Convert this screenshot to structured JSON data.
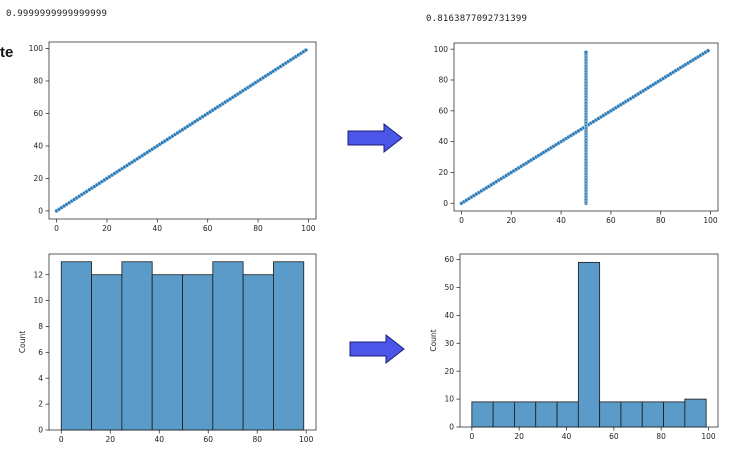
{
  "labels": {
    "corr_left": "0.9999999999999999",
    "corr_right": "0.8163877092731399",
    "side_text": "te"
  },
  "colors": {
    "point": "#2b7bb9",
    "bar": "#5a9bc9",
    "bar_edge": "#1a1a1a",
    "arrow_fill": "#4b55e8",
    "arrow_edge": "#1a1f7a"
  },
  "chart_data": [
    {
      "id": "scatter-left",
      "type": "scatter",
      "title": "",
      "xlabel": "",
      "ylabel": "",
      "xlim": [
        -3,
        103
      ],
      "ylim": [
        -5,
        104
      ],
      "xticks": [
        0,
        20,
        40,
        60,
        80,
        100
      ],
      "yticks": [
        0,
        20,
        40,
        60,
        80,
        100
      ],
      "series": [
        {
          "x_range": [
            0,
            99
          ],
          "y_equals_x": true
        }
      ],
      "grid": false
    },
    {
      "id": "scatter-right",
      "type": "scatter",
      "title": "",
      "xlabel": "",
      "ylabel": "",
      "xlim": [
        -3,
        103
      ],
      "ylim": [
        -5,
        104
      ],
      "xticks": [
        0,
        20,
        40,
        60,
        80,
        100
      ],
      "yticks": [
        0,
        20,
        40,
        60,
        80,
        100
      ],
      "series": [
        {
          "x_range": [
            0,
            99
          ],
          "y_equals_x": true
        },
        {
          "vertical_at_x": 50,
          "y_range": [
            0,
            98
          ]
        }
      ],
      "grid": false
    },
    {
      "id": "hist-left",
      "type": "bar",
      "title": "",
      "xlabel": "",
      "ylabel": "Count",
      "xlim": [
        -5,
        104
      ],
      "ylim": [
        0,
        13.6
      ],
      "xticks": [
        0,
        20,
        40,
        60,
        80,
        100
      ],
      "yticks": [
        0,
        2,
        4,
        6,
        8,
        10,
        12
      ],
      "bin_edges": [
        0,
        12.375,
        24.75,
        37.125,
        49.5,
        61.875,
        74.25,
        86.625,
        99
      ],
      "values": [
        13,
        12,
        13,
        12,
        12,
        13,
        12,
        13
      ]
    },
    {
      "id": "hist-right",
      "type": "bar",
      "title": "",
      "xlabel": "",
      "ylabel": "Count",
      "xlim": [
        -5,
        104
      ],
      "ylim": [
        0,
        62
      ],
      "xticks": [
        0,
        20,
        40,
        60,
        80,
        100
      ],
      "yticks": [
        0,
        10,
        20,
        30,
        40,
        50,
        60
      ],
      "bin_edges": [
        0,
        9,
        18,
        27,
        36,
        45,
        54,
        63,
        72,
        81,
        90,
        99
      ],
      "values": [
        9,
        9,
        9,
        9,
        9,
        59,
        9,
        9,
        9,
        9,
        10
      ]
    }
  ]
}
